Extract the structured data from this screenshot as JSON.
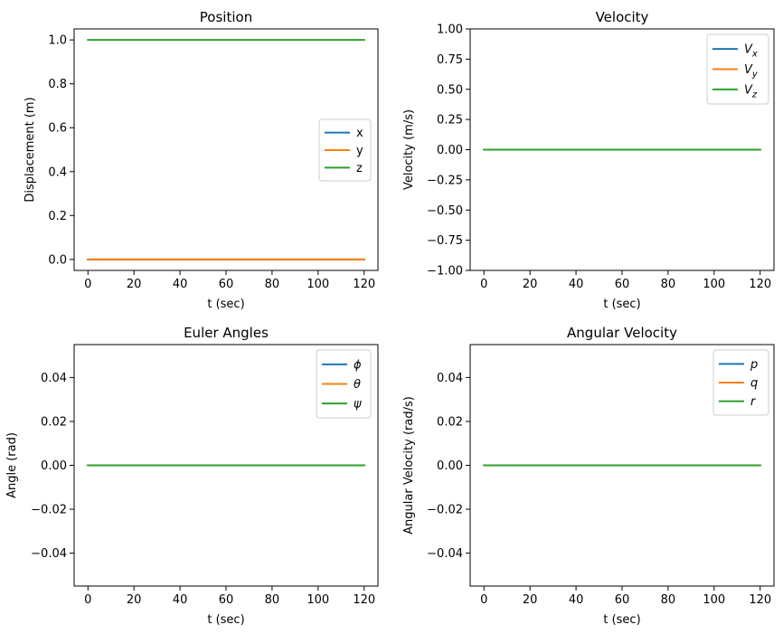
{
  "colors": {
    "blue": "#1f77b4",
    "orange": "#ff7f0e",
    "green": "#2ca02c"
  },
  "chart_data": [
    {
      "type": "line",
      "title": "Position",
      "xlabel": "t (sec)",
      "ylabel": "Displacement (m)",
      "xlim": [
        -6,
        126
      ],
      "ylim": [
        -0.05,
        1.05
      ],
      "xticks": [
        0,
        20,
        40,
        60,
        80,
        100,
        120
      ],
      "xtick_labels": [
        "0",
        "20",
        "40",
        "60",
        "80",
        "100",
        "120"
      ],
      "yticks": [
        0.0,
        0.2,
        0.4,
        0.6,
        0.8,
        1.0
      ],
      "ytick_labels": [
        "0.0",
        "0.2",
        "0.4",
        "0.6",
        "0.8",
        "1.0"
      ],
      "legend_position": "center-right",
      "series": [
        {
          "name": "x",
          "color": "#1f77b4",
          "x": [
            0,
            120
          ],
          "y": [
            0,
            0
          ]
        },
        {
          "name": "y",
          "color": "#ff7f0e",
          "x": [
            0,
            120
          ],
          "y": [
            0,
            0
          ]
        },
        {
          "name": "z",
          "color": "#2ca02c",
          "x": [
            0,
            120
          ],
          "y": [
            1,
            1
          ]
        }
      ]
    },
    {
      "type": "line",
      "title": "Velocity",
      "xlabel": "t (sec)",
      "ylabel": "Velocity (m/s)",
      "xlim": [
        -6,
        126
      ],
      "ylim": [
        -1.0,
        1.0
      ],
      "xticks": [
        0,
        20,
        40,
        60,
        80,
        100,
        120
      ],
      "xtick_labels": [
        "0",
        "20",
        "40",
        "60",
        "80",
        "100",
        "120"
      ],
      "yticks": [
        -1.0,
        -0.75,
        -0.5,
        -0.25,
        0.0,
        0.25,
        0.5,
        0.75,
        1.0
      ],
      "ytick_labels": [
        "−1.00",
        "−0.75",
        "−0.50",
        "−0.25",
        "0.00",
        "0.25",
        "0.50",
        "0.75",
        "1.00"
      ],
      "legend_position": "top-right",
      "series": [
        {
          "name": "V_x",
          "name_main": "V",
          "name_sub": "x",
          "color": "#1f77b4",
          "x": [
            0,
            120
          ],
          "y": [
            0,
            0
          ]
        },
        {
          "name": "V_y",
          "name_main": "V",
          "name_sub": "y",
          "color": "#ff7f0e",
          "x": [
            0,
            120
          ],
          "y": [
            0,
            0
          ]
        },
        {
          "name": "V_z",
          "name_main": "V",
          "name_sub": "z",
          "color": "#2ca02c",
          "x": [
            0,
            120
          ],
          "y": [
            0,
            0
          ]
        }
      ]
    },
    {
      "type": "line",
      "title": "Euler Angles",
      "xlabel": "t (sec)",
      "ylabel": "Angle (rad)",
      "xlim": [
        -6,
        126
      ],
      "ylim": [
        -0.055,
        0.055
      ],
      "xticks": [
        0,
        20,
        40,
        60,
        80,
        100,
        120
      ],
      "xtick_labels": [
        "0",
        "20",
        "40",
        "60",
        "80",
        "100",
        "120"
      ],
      "yticks": [
        -0.04,
        -0.02,
        0.0,
        0.02,
        0.04
      ],
      "ytick_labels": [
        "−0.04",
        "−0.02",
        "0.00",
        "0.02",
        "0.04"
      ],
      "legend_position": "top-right",
      "series": [
        {
          "name": "ϕ",
          "color": "#1f77b4",
          "x": [
            0,
            120
          ],
          "y": [
            0,
            0
          ]
        },
        {
          "name": "θ",
          "color": "#ff7f0e",
          "x": [
            0,
            120
          ],
          "y": [
            0,
            0
          ]
        },
        {
          "name": "ψ",
          "color": "#2ca02c",
          "x": [
            0,
            120
          ],
          "y": [
            0,
            0
          ]
        }
      ]
    },
    {
      "type": "line",
      "title": "Angular Velocity",
      "xlabel": "t (sec)",
      "ylabel": "Angular Velocity (rad/s)",
      "xlim": [
        -6,
        126
      ],
      "ylim": [
        -0.055,
        0.055
      ],
      "xticks": [
        0,
        20,
        40,
        60,
        80,
        100,
        120
      ],
      "xtick_labels": [
        "0",
        "20",
        "40",
        "60",
        "80",
        "100",
        "120"
      ],
      "yticks": [
        -0.04,
        -0.02,
        0.0,
        0.02,
        0.04
      ],
      "ytick_labels": [
        "−0.04",
        "−0.02",
        "0.00",
        "0.02",
        "0.04"
      ],
      "legend_position": "top-right",
      "series": [
        {
          "name": "p",
          "color": "#1f77b4",
          "x": [
            0,
            120
          ],
          "y": [
            0,
            0
          ]
        },
        {
          "name": "q",
          "color": "#ff7f0e",
          "x": [
            0,
            120
          ],
          "y": [
            0,
            0
          ]
        },
        {
          "name": "r",
          "color": "#2ca02c",
          "x": [
            0,
            120
          ],
          "y": [
            0,
            0
          ]
        }
      ]
    }
  ]
}
